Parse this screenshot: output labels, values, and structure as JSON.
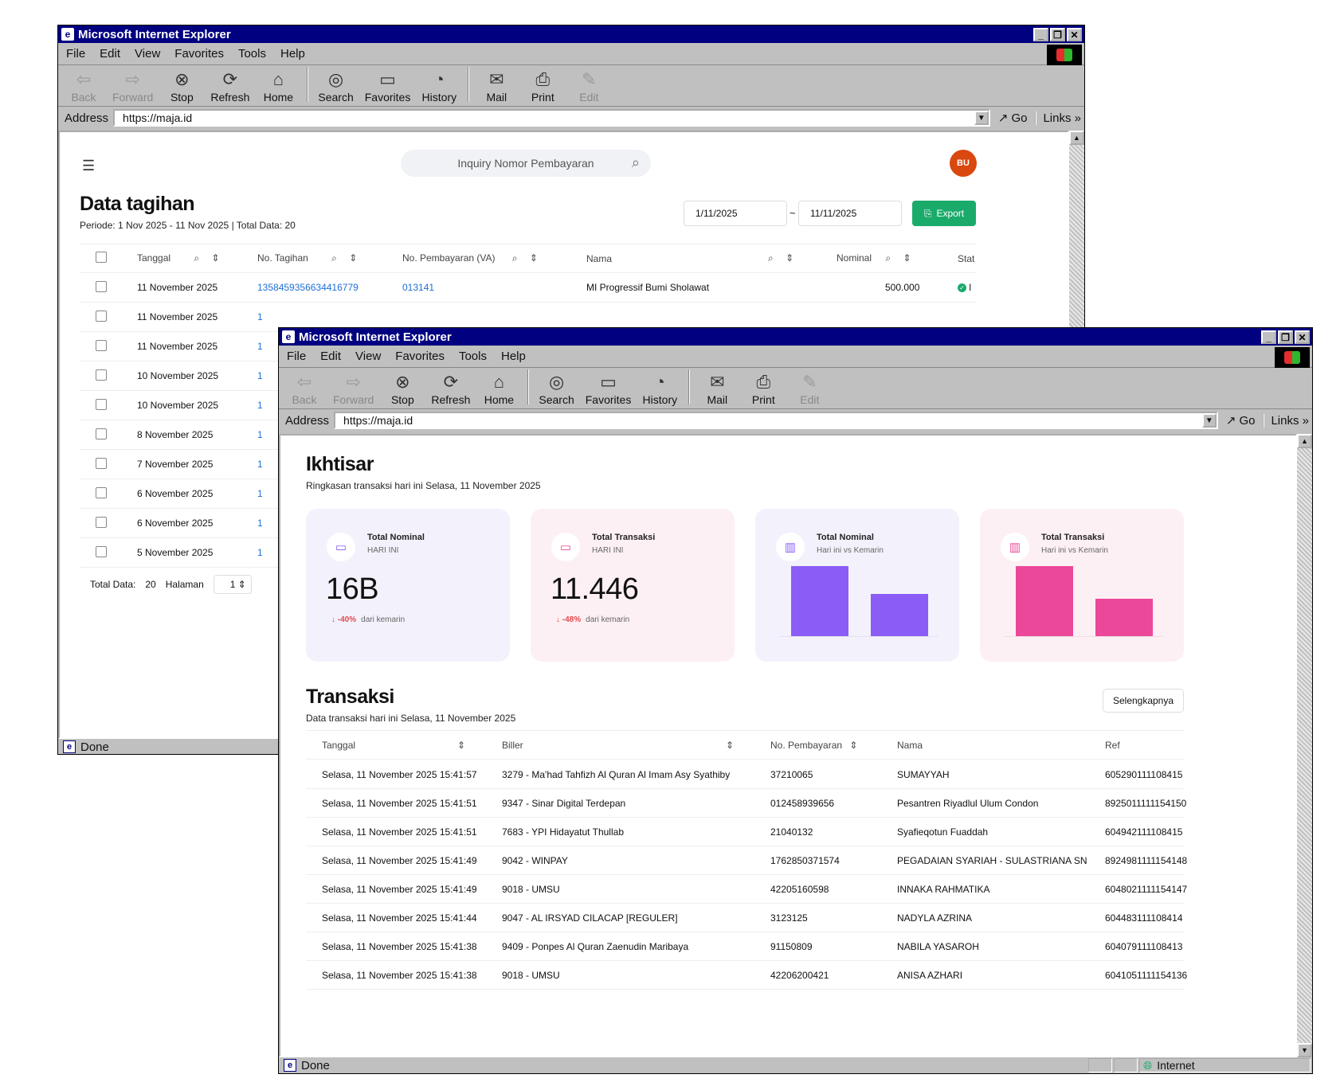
{
  "browser": {
    "title": "Microsoft Internet Explorer",
    "menu": [
      "File",
      "Edit",
      "View",
      "Favorites",
      "Tools",
      "Help"
    ],
    "toolbar": {
      "back": "Back",
      "forward": "Forward",
      "stop": "Stop",
      "refresh": "Refresh",
      "home": "Home",
      "search": "Search",
      "favorites": "Favorites",
      "history": "History",
      "mail": "Mail",
      "print": "Print",
      "edit": "Edit"
    },
    "address_label": "Address",
    "url": "https://maja.id",
    "go": "Go",
    "links": "Links",
    "status": "Done",
    "zone": "Internet"
  },
  "tagihan": {
    "search_placeholder": "Inquiry Nomor Pembayaran",
    "avatar": "BU",
    "title": "Data tagihan",
    "period": "Periode: 1 Nov 2025 - 11 Nov 2025 | Total Data: 20",
    "date_from": "1/11/2025",
    "date_sep": "~",
    "date_to": "11/11/2025",
    "export": "Export",
    "headers": [
      "Tanggal",
      "No. Tagihan",
      "No. Pembayaran (VA)",
      "Nama",
      "Nominal",
      "Stat"
    ],
    "rows": [
      {
        "tanggal": "11 November 2025",
        "no_tagihan": "1358459356634416779",
        "va": "013141",
        "nama": "MI Progressif Bumi Sholawat",
        "nominal": "500.000",
        "status": "l"
      },
      {
        "tanggal": "11 November 2025"
      },
      {
        "tanggal": "11 November 2025"
      },
      {
        "tanggal": "10 November 2025"
      },
      {
        "tanggal": "10 November 2025"
      },
      {
        "tanggal": "8 November 2025"
      },
      {
        "tanggal": "7 November 2025"
      },
      {
        "tanggal": "6 November 2025"
      },
      {
        "tanggal": "6 November 2025"
      },
      {
        "tanggal": "5 November 2025"
      }
    ],
    "footer": {
      "total_label": "Total Data:",
      "total": "20",
      "page_label": "Halaman",
      "page": "1"
    }
  },
  "ikhtisar": {
    "title": "Ikhtisar",
    "subtitle": "Ringkasan transaksi hari ini Selasa, 11 November 2025",
    "cards": [
      {
        "title": "Total Nominal",
        "sub": "HARI INI",
        "value": "16B",
        "delta": "-40%",
        "delta_text": "dari kemarin"
      },
      {
        "title": "Total Transaksi",
        "sub": "HARI INI",
        "value": "11.446",
        "delta": "-48%",
        "delta_text": "dari kemarin"
      },
      {
        "title": "Total Nominal",
        "sub": "Hari ini vs Kemarin",
        "bars": [
          1.0,
          0.6
        ]
      },
      {
        "title": "Total Transaksi",
        "sub": "Hari ini vs Kemarin",
        "bars": [
          1.0,
          0.53
        ]
      }
    ],
    "colors": {
      "purple": "#8b5cf6",
      "pink": "#ec4899",
      "card1": "#f3f2fc",
      "card2": "#fdf0f4",
      "red": "#e5484d"
    }
  },
  "transaksi": {
    "title": "Transaksi",
    "subtitle": "Data transaksi hari ini Selasa, 11 November 2025",
    "more": "Selengkapnya",
    "headers": [
      "Tanggal",
      "Biller",
      "No. Pembayaran",
      "Nama",
      "Ref"
    ],
    "rows": [
      [
        "Selasa, 11 November 2025 15:41:57",
        "3279 - Ma'had Tahfizh Al Quran Al Imam Asy Syathiby",
        "37210065",
        "SUMAYYAH",
        "605290111108415"
      ],
      [
        "Selasa, 11 November 2025 15:41:51",
        "9347 - Sinar Digital Terdepan",
        "012458939656",
        "Pesantren Riyadlul Ulum Condon",
        "8925011111154150"
      ],
      [
        "Selasa, 11 November 2025 15:41:51",
        "7683 - YPI Hidayatut Thullab",
        "21040132",
        "Syafieqotun Fuaddah",
        "604942111108415"
      ],
      [
        "Selasa, 11 November 2025 15:41:49",
        "9042 - WINPAY",
        "1762850371574",
        "PEGADAIAN SYARIAH - SULASTRIANA SN",
        "8924981111154148"
      ],
      [
        "Selasa, 11 November 2025 15:41:49",
        "9018 - UMSU",
        "42205160598",
        "INNAKA RAHMATIKA",
        "6048021111154147"
      ],
      [
        "Selasa, 11 November 2025 15:41:44",
        "9047 - AL IRSYAD CILACAP [REGULER]",
        "3123125",
        "NADYLA AZRINA",
        "604483111108414"
      ],
      [
        "Selasa, 11 November 2025 15:41:38",
        "9409 - Ponpes Al Quran Zaenudin Maribaya",
        "91150809",
        "NABILA YASAROH",
        "604079111108413"
      ],
      [
        "Selasa, 11 November 2025 15:41:38",
        "9018 - UMSU",
        "42206200421",
        "ANISA AZHARI",
        "6041051111154136"
      ]
    ]
  }
}
